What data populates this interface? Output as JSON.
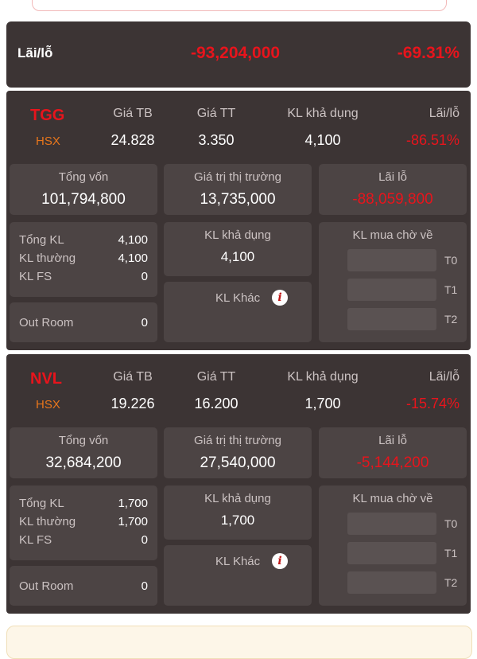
{
  "summary": {
    "label": "Lãi/lỗ",
    "amount": "-93,204,000",
    "percent": "-69.31%"
  },
  "headers": {
    "avg_price": "Giá TB",
    "market_price": "Giá TT",
    "available": "KL khả dụng",
    "pnl": "Lãi/lỗ"
  },
  "labels": {
    "capital": "Tổng vốn",
    "market_value": "Giá trị thị trường",
    "pnl": "Lãi lỗ",
    "total_qty": "Tổng KL",
    "normal_qty": "KL thường",
    "fs_qty": "KL FS",
    "out_room": "Out Room",
    "available_qty": "KL khả dụng",
    "other_qty": "KL Khác",
    "pending_qty": "KL mua chờ về",
    "t0": "T0",
    "t1": "T1",
    "t2": "T2"
  },
  "positions": [
    {
      "symbol": "TGG",
      "exchange": "HSX",
      "avg_price": "24.828",
      "market_price": "3.350",
      "available": "4,100",
      "pnl_percent": "-86.51%",
      "capital": "101,794,800",
      "market_value": "13,735,000",
      "pnl": "-88,059,800",
      "total_qty": "4,100",
      "normal_qty": "4,100",
      "fs_qty": "0",
      "out_room": "0",
      "available_qty": "4,100"
    },
    {
      "symbol": "NVL",
      "exchange": "HSX",
      "avg_price": "19.226",
      "market_price": "16.200",
      "available": "1,700",
      "pnl_percent": "-15.74%",
      "capital": "32,684,200",
      "market_value": "27,540,000",
      "pnl": "-5,144,200",
      "total_qty": "1,700",
      "normal_qty": "1,700",
      "fs_qty": "0",
      "out_room": "0",
      "available_qty": "1,700"
    }
  ],
  "colors": {
    "negative": "#e8141c",
    "exchange": "#e8761c",
    "card": "#3c3434",
    "box": "#4c4444"
  },
  "icons": {
    "info": "info-icon"
  }
}
